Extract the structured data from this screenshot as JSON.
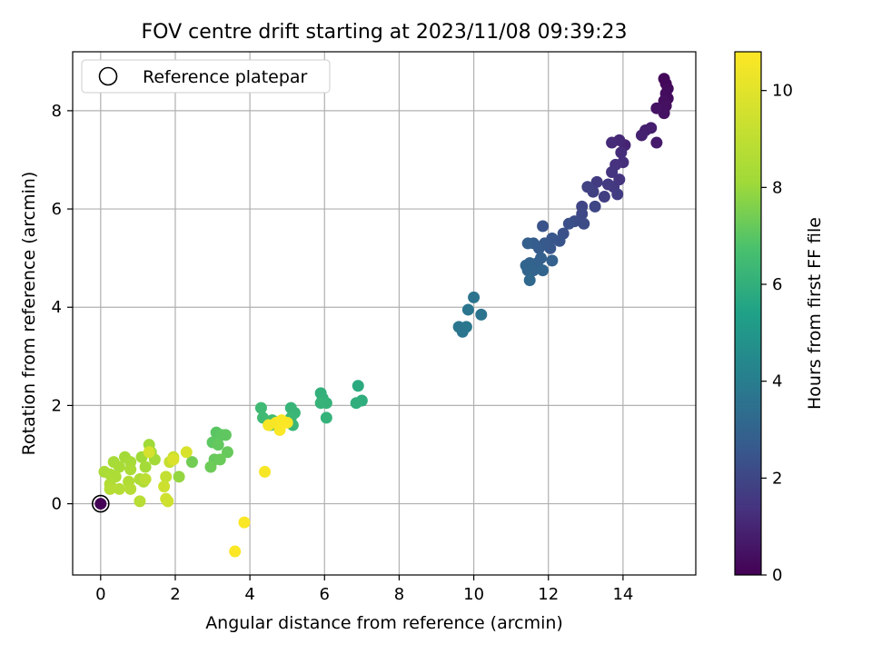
{
  "chart_data": {
    "type": "scatter",
    "title": "FOV centre drift starting at 2023/11/08 09:39:23",
    "xlabel": "Angular distance from reference (arcmin)",
    "ylabel": "Rotation from reference (arcmin)",
    "xlim": [
      -0.75,
      15.95
    ],
    "ylim": [
      -1.45,
      9.2
    ],
    "xticks": [
      0,
      2,
      4,
      6,
      8,
      10,
      12,
      14
    ],
    "yticks": [
      0,
      2,
      4,
      6,
      8
    ],
    "grid": true,
    "legend": {
      "position": "top-left",
      "entries": [
        "Reference platepar"
      ]
    },
    "colorbar": {
      "label": "Hours from first FF file",
      "colormap": "viridis",
      "range": [
        0,
        10.8
      ],
      "ticks": [
        0,
        2,
        4,
        6,
        8,
        10
      ]
    },
    "reference_point": {
      "x": 0,
      "y": 0
    },
    "points": [
      {
        "x": 0.0,
        "y": 0.0,
        "c": 0.05
      },
      {
        "x": 15.1,
        "y": 8.65,
        "c": 0.2
      },
      {
        "x": 15.15,
        "y": 8.55,
        "c": 0.2
      },
      {
        "x": 15.2,
        "y": 8.45,
        "c": 0.25
      },
      {
        "x": 15.15,
        "y": 8.35,
        "c": 0.3
      },
      {
        "x": 15.2,
        "y": 8.25,
        "c": 0.3
      },
      {
        "x": 15.1,
        "y": 8.2,
        "c": 0.35
      },
      {
        "x": 15.15,
        "y": 8.1,
        "c": 0.4
      },
      {
        "x": 15.0,
        "y": 8.05,
        "c": 0.4
      },
      {
        "x": 15.1,
        "y": 7.95,
        "c": 0.45
      },
      {
        "x": 14.9,
        "y": 8.05,
        "c": 0.5
      },
      {
        "x": 14.75,
        "y": 7.65,
        "c": 0.8
      },
      {
        "x": 14.6,
        "y": 7.6,
        "c": 0.85
      },
      {
        "x": 14.5,
        "y": 7.5,
        "c": 0.9
      },
      {
        "x": 14.9,
        "y": 7.35,
        "c": 0.7
      },
      {
        "x": 14.05,
        "y": 7.3,
        "c": 1.0
      },
      {
        "x": 13.9,
        "y": 7.4,
        "c": 1.1
      },
      {
        "x": 13.7,
        "y": 7.35,
        "c": 1.15
      },
      {
        "x": 13.95,
        "y": 7.15,
        "c": 1.2
      },
      {
        "x": 14.0,
        "y": 6.95,
        "c": 1.3
      },
      {
        "x": 13.8,
        "y": 6.9,
        "c": 1.35
      },
      {
        "x": 13.7,
        "y": 6.75,
        "c": 1.4
      },
      {
        "x": 13.9,
        "y": 6.6,
        "c": 1.45
      },
      {
        "x": 13.75,
        "y": 6.45,
        "c": 1.55
      },
      {
        "x": 13.6,
        "y": 6.5,
        "c": 1.6
      },
      {
        "x": 13.85,
        "y": 6.3,
        "c": 1.7
      },
      {
        "x": 13.5,
        "y": 6.25,
        "c": 1.75
      },
      {
        "x": 13.3,
        "y": 6.55,
        "c": 1.65
      },
      {
        "x": 13.2,
        "y": 6.35,
        "c": 1.8
      },
      {
        "x": 13.05,
        "y": 6.45,
        "c": 1.85
      },
      {
        "x": 12.9,
        "y": 6.05,
        "c": 1.95
      },
      {
        "x": 13.25,
        "y": 6.05,
        "c": 2.0
      },
      {
        "x": 12.9,
        "y": 5.9,
        "c": 2.05
      },
      {
        "x": 12.95,
        "y": 5.7,
        "c": 2.15
      },
      {
        "x": 12.7,
        "y": 5.75,
        "c": 2.2
      },
      {
        "x": 12.55,
        "y": 5.7,
        "c": 2.3
      },
      {
        "x": 12.4,
        "y": 5.5,
        "c": 2.35
      },
      {
        "x": 12.3,
        "y": 5.35,
        "c": 2.45
      },
      {
        "x": 12.1,
        "y": 5.4,
        "c": 2.5
      },
      {
        "x": 12.05,
        "y": 5.2,
        "c": 2.55
      },
      {
        "x": 11.85,
        "y": 5.65,
        "c": 2.4
      },
      {
        "x": 11.9,
        "y": 5.3,
        "c": 2.6
      },
      {
        "x": 11.75,
        "y": 5.2,
        "c": 2.7
      },
      {
        "x": 11.6,
        "y": 5.3,
        "c": 2.75
      },
      {
        "x": 11.45,
        "y": 5.3,
        "c": 2.8
      },
      {
        "x": 11.8,
        "y": 5.0,
        "c": 2.85
      },
      {
        "x": 11.7,
        "y": 4.9,
        "c": 2.9
      },
      {
        "x": 11.5,
        "y": 4.9,
        "c": 2.95
      },
      {
        "x": 11.6,
        "y": 4.75,
        "c": 3.0
      },
      {
        "x": 11.85,
        "y": 4.75,
        "c": 3.05
      },
      {
        "x": 12.1,
        "y": 4.95,
        "c": 2.9
      },
      {
        "x": 11.45,
        "y": 4.75,
        "c": 3.1
      },
      {
        "x": 11.5,
        "y": 4.55,
        "c": 3.15
      },
      {
        "x": 11.4,
        "y": 4.85,
        "c": 3.05
      },
      {
        "x": 10.0,
        "y": 4.2,
        "c": 3.6
      },
      {
        "x": 9.85,
        "y": 3.95,
        "c": 3.65
      },
      {
        "x": 10.2,
        "y": 3.85,
        "c": 3.6
      },
      {
        "x": 9.6,
        "y": 3.6,
        "c": 3.7
      },
      {
        "x": 9.8,
        "y": 3.6,
        "c": 3.75
      },
      {
        "x": 9.7,
        "y": 3.5,
        "c": 3.7
      },
      {
        "x": 6.9,
        "y": 2.4,
        "c": 5.8
      },
      {
        "x": 7.0,
        "y": 2.1,
        "c": 5.9
      },
      {
        "x": 6.85,
        "y": 2.05,
        "c": 5.95
      },
      {
        "x": 5.9,
        "y": 2.25,
        "c": 6.0
      },
      {
        "x": 5.95,
        "y": 2.15,
        "c": 6.05
      },
      {
        "x": 6.05,
        "y": 2.05,
        "c": 6.1
      },
      {
        "x": 6.05,
        "y": 1.75,
        "c": 6.1
      },
      {
        "x": 5.9,
        "y": 2.05,
        "c": 6.15
      },
      {
        "x": 5.1,
        "y": 1.95,
        "c": 6.2
      },
      {
        "x": 5.2,
        "y": 1.85,
        "c": 6.25
      },
      {
        "x": 5.1,
        "y": 1.75,
        "c": 6.3
      },
      {
        "x": 5.15,
        "y": 1.6,
        "c": 6.3
      },
      {
        "x": 4.3,
        "y": 1.95,
        "c": 6.4
      },
      {
        "x": 4.35,
        "y": 1.75,
        "c": 6.45
      },
      {
        "x": 4.6,
        "y": 1.7,
        "c": 6.5
      },
      {
        "x": 4.7,
        "y": 1.6,
        "c": 6.55
      },
      {
        "x": 4.55,
        "y": 1.6,
        "c": 6.6
      },
      {
        "x": 3.1,
        "y": 1.45,
        "c": 7.0
      },
      {
        "x": 3.25,
        "y": 1.4,
        "c": 7.05
      },
      {
        "x": 3.35,
        "y": 1.4,
        "c": 7.1
      },
      {
        "x": 3.0,
        "y": 1.25,
        "c": 7.05
      },
      {
        "x": 3.15,
        "y": 1.2,
        "c": 7.15
      },
      {
        "x": 3.4,
        "y": 1.05,
        "c": 7.2
      },
      {
        "x": 3.05,
        "y": 0.9,
        "c": 7.2
      },
      {
        "x": 3.2,
        "y": 0.9,
        "c": 7.25
      },
      {
        "x": 2.95,
        "y": 0.75,
        "c": 7.3
      },
      {
        "x": 2.45,
        "y": 0.85,
        "c": 7.4
      },
      {
        "x": 2.1,
        "y": 0.55,
        "c": 7.9
      },
      {
        "x": 1.3,
        "y": 1.2,
        "c": 8.1
      },
      {
        "x": 1.35,
        "y": 1.05,
        "c": 8.15
      },
      {
        "x": 1.1,
        "y": 0.95,
        "c": 8.1
      },
      {
        "x": 1.45,
        "y": 0.9,
        "c": 8.2
      },
      {
        "x": 1.2,
        "y": 0.75,
        "c": 8.25
      },
      {
        "x": 0.65,
        "y": 0.95,
        "c": 8.2
      },
      {
        "x": 0.8,
        "y": 0.85,
        "c": 8.3
      },
      {
        "x": 0.35,
        "y": 0.85,
        "c": 8.3
      },
      {
        "x": 0.5,
        "y": 0.75,
        "c": 8.35
      },
      {
        "x": 0.8,
        "y": 0.7,
        "c": 8.4
      },
      {
        "x": 0.1,
        "y": 0.65,
        "c": 8.4
      },
      {
        "x": 0.25,
        "y": 0.6,
        "c": 8.45
      },
      {
        "x": 0.4,
        "y": 0.55,
        "c": 8.5
      },
      {
        "x": 1.05,
        "y": 0.5,
        "c": 8.5
      },
      {
        "x": 1.15,
        "y": 0.45,
        "c": 8.55
      },
      {
        "x": 0.75,
        "y": 0.45,
        "c": 8.6
      },
      {
        "x": 0.25,
        "y": 0.4,
        "c": 8.6
      },
      {
        "x": 0.5,
        "y": 0.3,
        "c": 8.7
      },
      {
        "x": 0.8,
        "y": 0.3,
        "c": 8.7
      },
      {
        "x": 0.25,
        "y": 0.3,
        "c": 8.75
      },
      {
        "x": 1.05,
        "y": 0.05,
        "c": 8.8
      },
      {
        "x": 1.2,
        "y": 0.5,
        "c": 8.9
      },
      {
        "x": 1.85,
        "y": 0.85,
        "c": 9.2
      },
      {
        "x": 1.95,
        "y": 0.95,
        "c": 9.3
      },
      {
        "x": 1.75,
        "y": 0.55,
        "c": 9.1
      },
      {
        "x": 1.7,
        "y": 0.35,
        "c": 9.4
      },
      {
        "x": 1.75,
        "y": 0.1,
        "c": 9.5
      },
      {
        "x": 1.8,
        "y": 0.05,
        "c": 9.45
      },
      {
        "x": 1.3,
        "y": 1.05,
        "c": 9.6
      },
      {
        "x": 2.3,
        "y": 1.05,
        "c": 9.7
      },
      {
        "x": 1.95,
        "y": 0.9,
        "c": 9.8
      },
      {
        "x": 4.5,
        "y": 1.6,
        "c": 10.6
      },
      {
        "x": 4.7,
        "y": 1.65,
        "c": 10.65
      },
      {
        "x": 4.85,
        "y": 1.7,
        "c": 10.7
      },
      {
        "x": 4.8,
        "y": 1.5,
        "c": 10.7
      },
      {
        "x": 5.0,
        "y": 1.65,
        "c": 10.75
      },
      {
        "x": 4.4,
        "y": 0.65,
        "c": 10.6
      },
      {
        "x": 3.85,
        "y": -0.38,
        "c": 10.7
      },
      {
        "x": 3.6,
        "y": -0.97,
        "c": 10.75
      }
    ]
  }
}
